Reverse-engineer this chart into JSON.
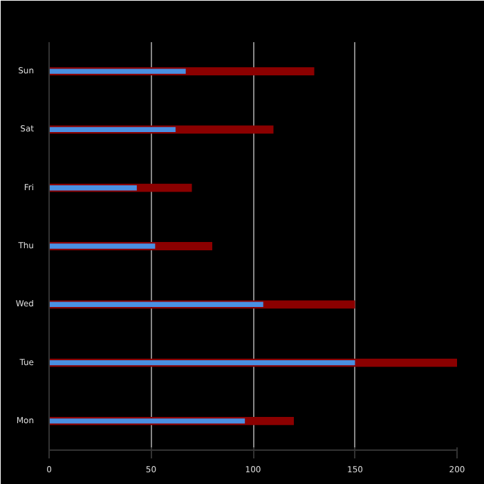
{
  "chart_data": {
    "type": "bar",
    "orientation": "horizontal",
    "categories": [
      "Sun",
      "Sat",
      "Fri",
      "Thu",
      "Wed",
      "Tue",
      "Mon"
    ],
    "series": [
      {
        "color": "#8b0000",
        "values": [
          130,
          110,
          70,
          80,
          150,
          200,
          120
        ]
      },
      {
        "color": "#4a90e2",
        "values": [
          67,
          62,
          43,
          52,
          105,
          150,
          96
        ]
      }
    ],
    "xlim": [
      0,
      200
    ],
    "xticks": [
      0,
      50,
      100,
      150,
      200
    ],
    "grid": "x"
  }
}
